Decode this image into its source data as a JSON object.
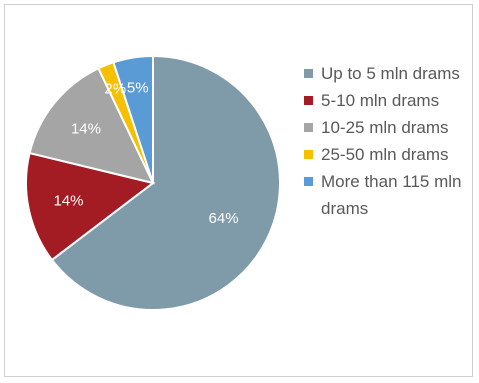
{
  "chart_data": {
    "type": "pie",
    "categories": [
      "Up to 5 mln drams",
      "5-10 mln drams",
      "10-25 mln drams",
      "25-50 mln drams",
      "More than 115 mln drams"
    ],
    "values": [
      64,
      14,
      14,
      2,
      5
    ],
    "labels": [
      "64%",
      "14%",
      "14%",
      "2%",
      "5%"
    ],
    "colors": [
      "#7f9baa",
      "#a31c23",
      "#a5a5a5",
      "#f5c000",
      "#5b9bd5"
    ],
    "legend_position": "right"
  }
}
